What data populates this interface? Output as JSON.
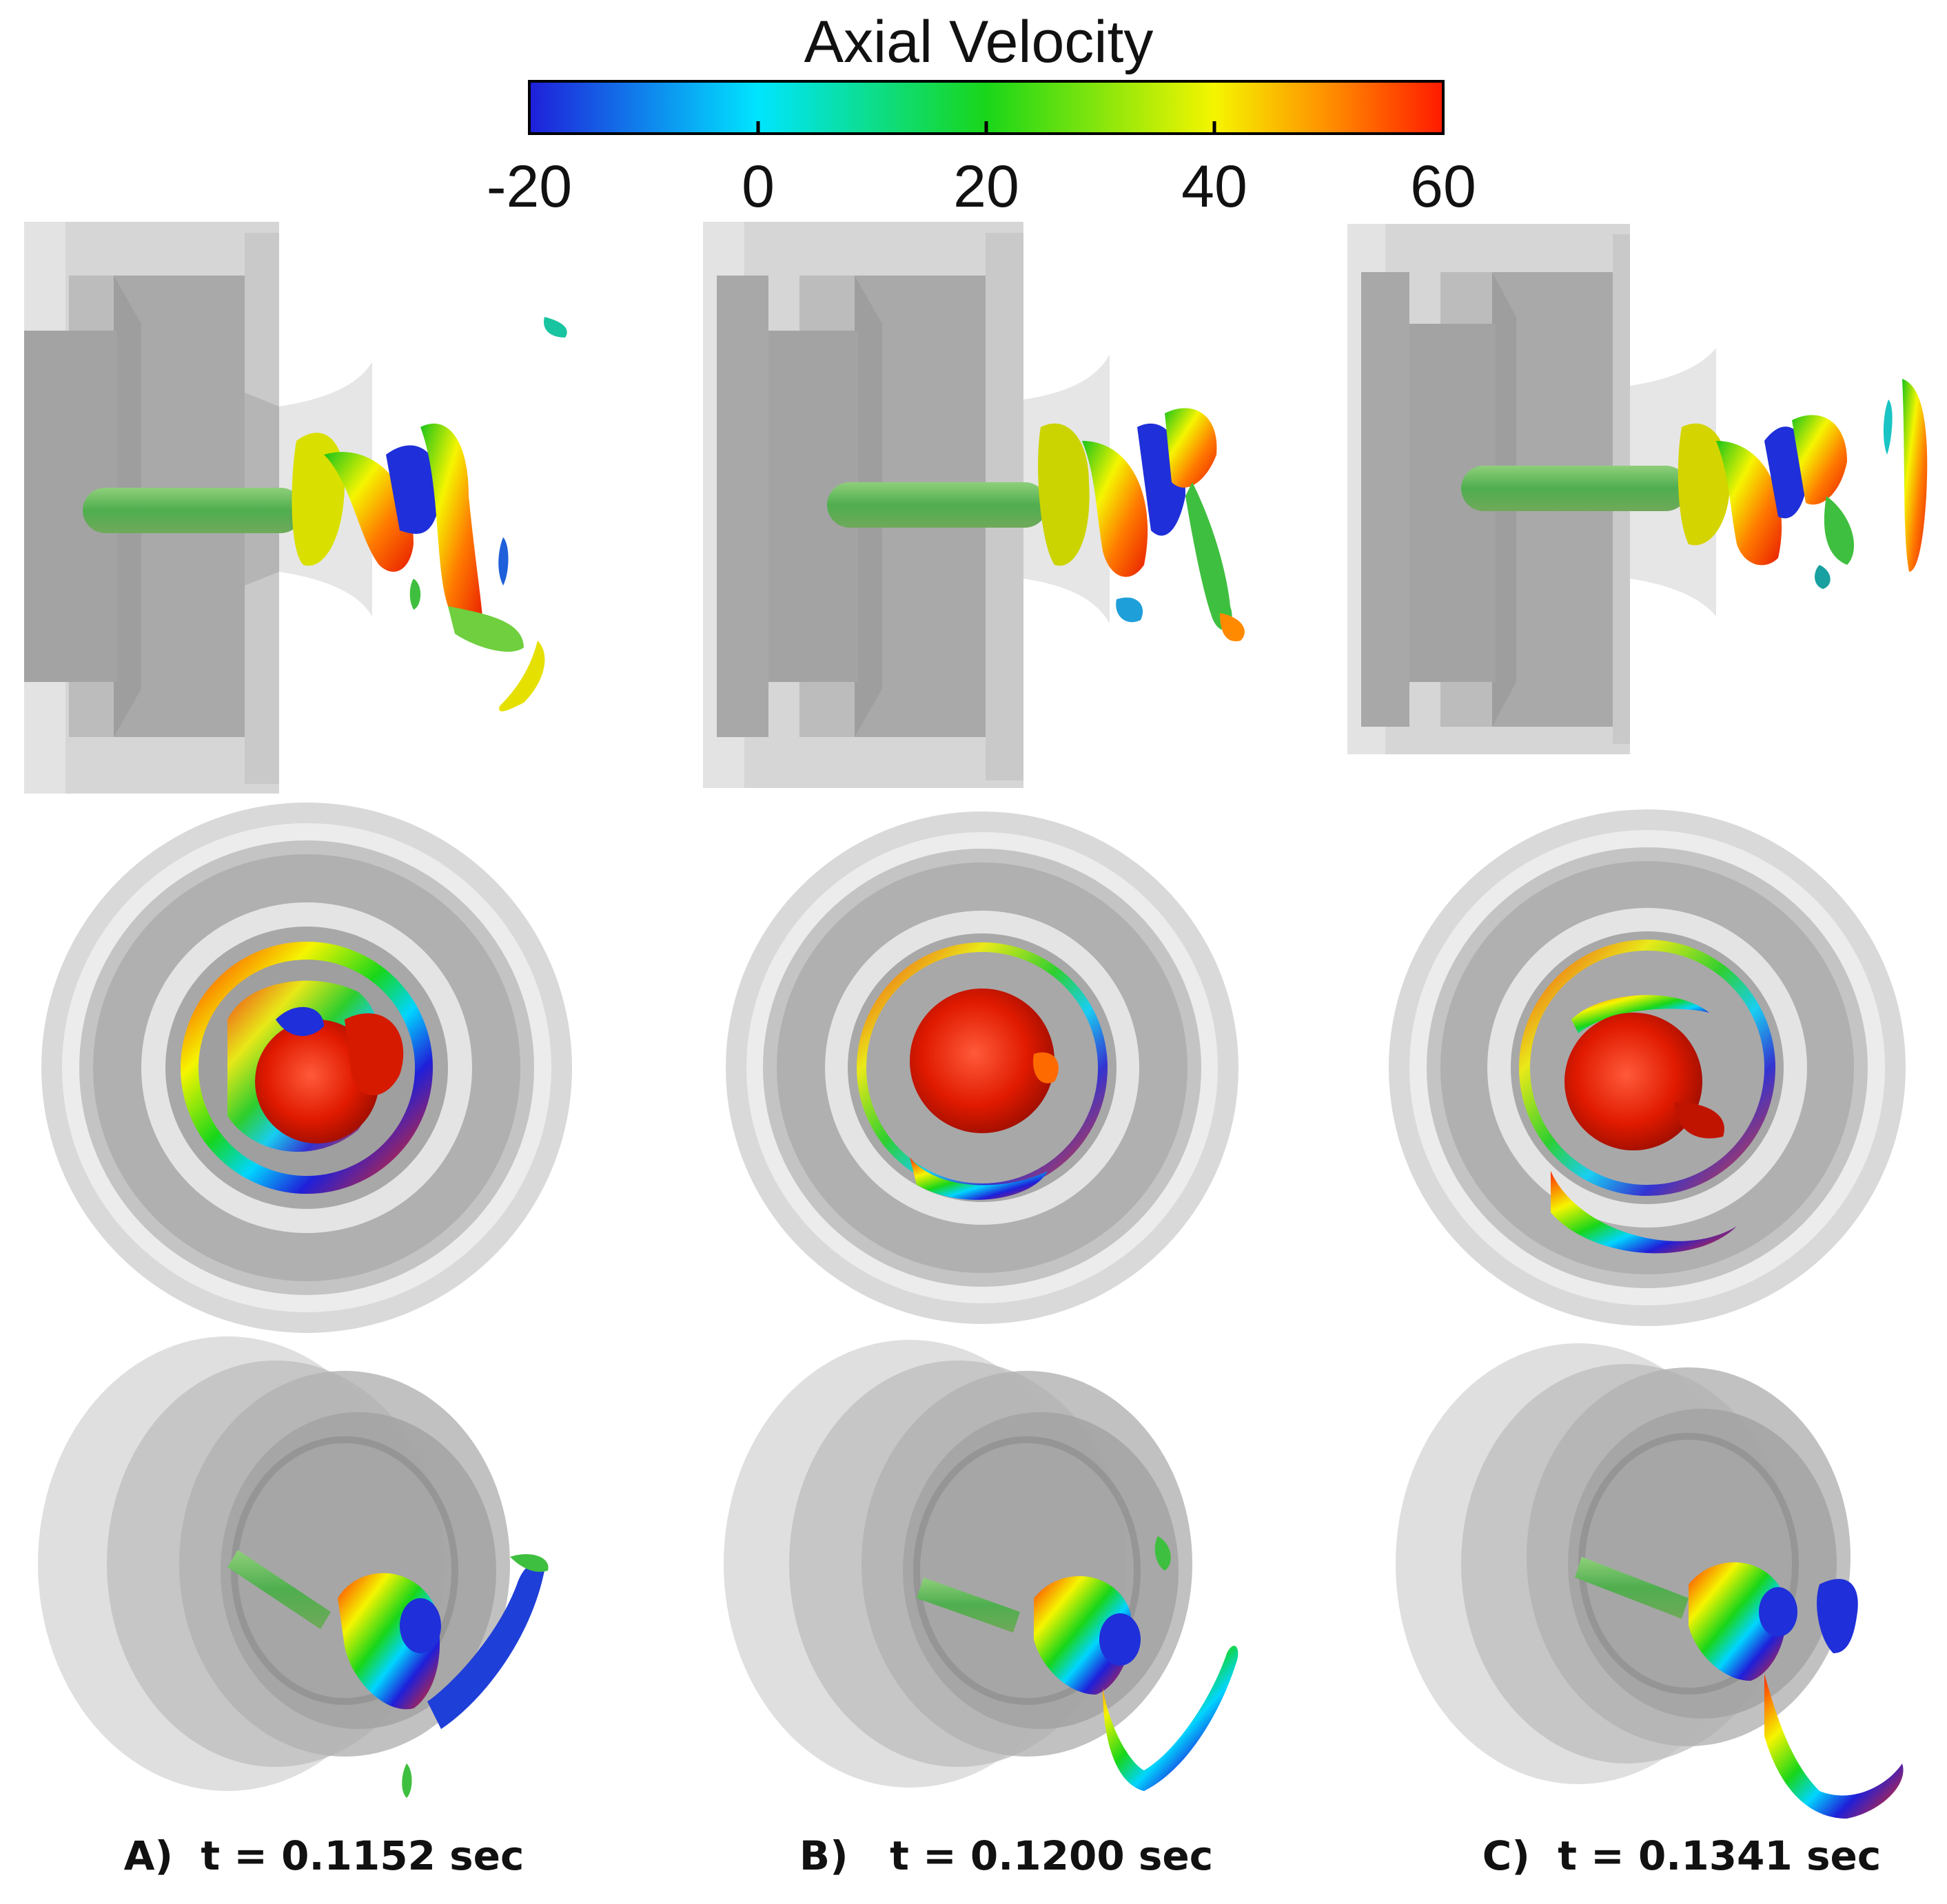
{
  "colorbar": {
    "title": "Axial Velocity",
    "ticks": [
      "-20",
      "0",
      "20",
      "40",
      "60"
    ],
    "range": [
      -20,
      60
    ],
    "colors": [
      "#1f1fd9",
      "#00e5ff",
      "#19d619",
      "#f5f500",
      "#ff8a00",
      "#ff1a00"
    ]
  },
  "panels": [
    {
      "caption": "A)  t = 0.1152 sec"
    },
    {
      "caption": "B)   t = 0.1200 sec"
    },
    {
      "caption": "C)  t = 0.1341 sec"
    }
  ]
}
